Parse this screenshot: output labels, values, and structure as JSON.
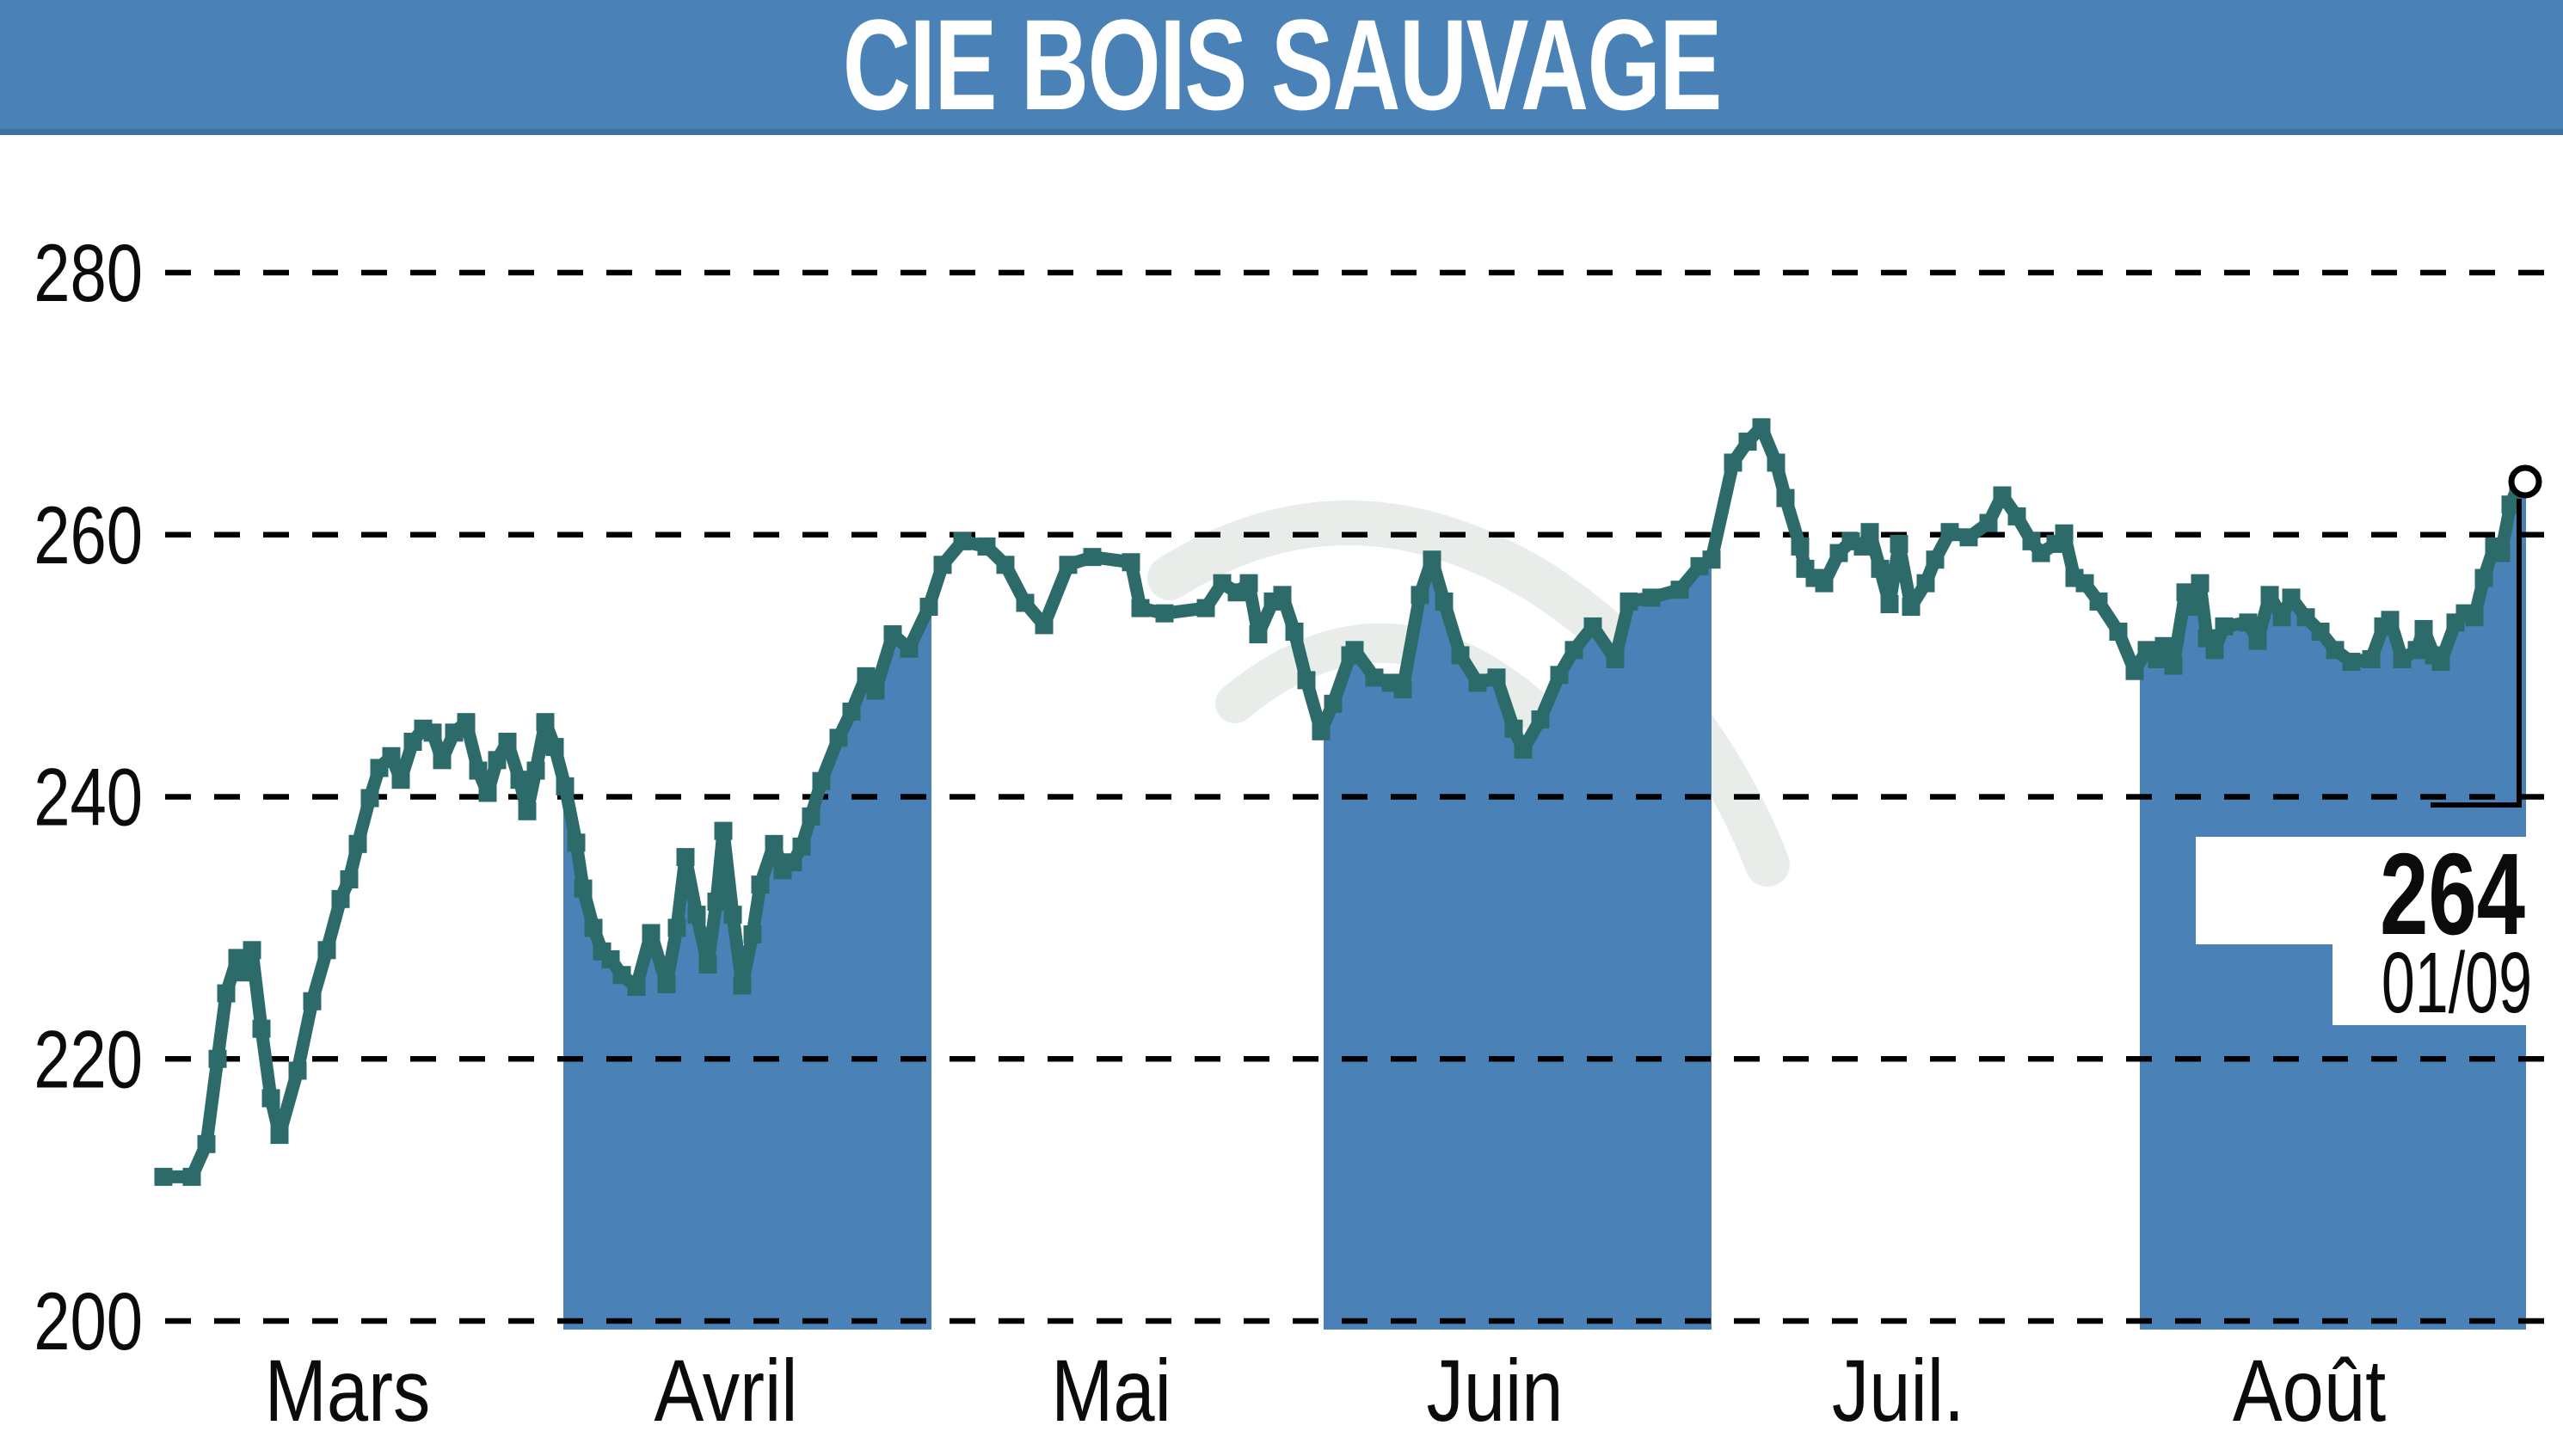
{
  "title_bar": {
    "label": "CIE BOIS SAUVAGE"
  },
  "price_callout": {
    "value": "264",
    "date": "01/09"
  },
  "colors": {
    "header_blue": "#4A82B8",
    "band_blue": "#4A82B8",
    "line_teal": "#2D6B6A",
    "grid_black": "#000000",
    "watermark_gray": "#E8EDEA",
    "text_black": "#0B0B0B",
    "title_text": "#FFFFFF",
    "marker_fill": "#FFFFFF"
  },
  "chart_data": {
    "type": "area",
    "title": "CIE BOIS SAUVAGE",
    "xlabel": "",
    "ylabel": "",
    "y_ticks": [
      280,
      260,
      240,
      220,
      200
    ],
    "ylim": [
      195,
      287
    ],
    "x_tick_labels": [
      "Mars",
      "Avril",
      "Mai",
      "Juin",
      "Juil.",
      "Août"
    ],
    "shaded_months": [
      "Avril",
      "Juin",
      "Août"
    ],
    "grid": "horizontal-dashed",
    "legend": "none",
    "last_point": {
      "value": 264,
      "date": "01/09"
    },
    "series": [
      {
        "name": "CIE BOIS SAUVAGE",
        "points": [
          [
            190,
            211
          ],
          [
            223,
            211
          ],
          [
            240,
            213.5
          ],
          [
            253,
            220
          ],
          [
            263,
            225
          ],
          [
            276,
            227.7
          ],
          [
            284,
            226.6
          ],
          [
            293,
            228.3
          ],
          [
            304,
            222.3
          ],
          [
            315,
            217
          ],
          [
            325,
            214.2
          ],
          [
            346,
            219.1
          ],
          [
            363,
            224.4
          ],
          [
            380,
            228.3
          ],
          [
            396,
            232.2
          ],
          [
            406,
            233.7
          ],
          [
            416,
            236.4
          ],
          [
            430,
            239.9
          ],
          [
            441,
            242.2
          ],
          [
            455,
            243.1
          ],
          [
            466,
            241.3
          ],
          [
            480,
            244.2
          ],
          [
            492,
            245.2
          ],
          [
            503,
            244.9
          ],
          [
            514,
            242.8
          ],
          [
            528,
            244.9
          ],
          [
            542,
            245.7
          ],
          [
            556,
            242
          ],
          [
            567,
            240.3
          ],
          [
            578,
            242.8
          ],
          [
            590,
            244.2
          ],
          [
            604,
            241.3
          ],
          [
            613,
            238.9
          ],
          [
            623,
            242
          ],
          [
            634,
            245.7
          ],
          [
            645,
            243.8
          ],
          [
            657,
            240.8
          ],
          [
            670,
            236.5
          ],
          [
            678,
            233
          ],
          [
            690,
            230
          ],
          [
            700,
            228.2
          ],
          [
            710,
            227.6
          ],
          [
            723,
            226.4
          ],
          [
            740,
            225.5
          ],
          [
            757,
            229.6
          ],
          [
            775,
            225.7
          ],
          [
            787,
            230
          ],
          [
            797,
            235.4
          ],
          [
            810,
            231
          ],
          [
            823,
            227.2
          ],
          [
            833,
            232
          ],
          [
            841,
            237.4
          ],
          [
            852,
            231
          ],
          [
            863,
            225.6
          ],
          [
            875,
            229.5
          ],
          [
            884,
            233.3
          ],
          [
            900,
            236.4
          ],
          [
            910,
            234.4
          ],
          [
            922,
            235
          ],
          [
            932,
            236.2
          ],
          [
            943,
            238.5
          ],
          [
            955,
            241.2
          ],
          [
            975,
            244.5
          ],
          [
            990,
            246.5
          ],
          [
            1007,
            249.2
          ],
          [
            1018,
            248.1
          ],
          [
            1038,
            252.4
          ],
          [
            1057,
            251.3
          ],
          [
            1080,
            254.5
          ],
          [
            1096,
            257.7
          ],
          [
            1119,
            259.5
          ],
          [
            1147,
            259.1
          ],
          [
            1169,
            257.7
          ],
          [
            1192,
            254.8
          ],
          [
            1214,
            253.1
          ],
          [
            1242,
            257.7
          ],
          [
            1270,
            258.3
          ],
          [
            1315,
            257.9
          ],
          [
            1326,
            254.4
          ],
          [
            1354,
            254
          ],
          [
            1402,
            254.4
          ],
          [
            1421,
            256.3
          ],
          [
            1438,
            255.6
          ],
          [
            1452,
            256.3
          ],
          [
            1463,
            252.4
          ],
          [
            1480,
            254.9
          ],
          [
            1491,
            255.4
          ],
          [
            1505,
            252.6
          ],
          [
            1519,
            248.9
          ],
          [
            1536,
            245
          ],
          [
            1550,
            247.1
          ],
          [
            1570,
            250.8
          ],
          [
            1575,
            251.2
          ],
          [
            1598,
            249.1
          ],
          [
            1617,
            248.7
          ],
          [
            1631,
            248.2
          ],
          [
            1651,
            255.4
          ],
          [
            1665,
            258.1
          ],
          [
            1679,
            254.9
          ],
          [
            1698,
            250.8
          ],
          [
            1718,
            248.7
          ],
          [
            1740,
            249.1
          ],
          [
            1760,
            245.2
          ],
          [
            1771,
            243.6
          ],
          [
            1791,
            245.9
          ],
          [
            1813,
            249.3
          ],
          [
            1830,
            251.2
          ],
          [
            1852,
            253
          ],
          [
            1878,
            250.5
          ],
          [
            1894,
            254.9
          ],
          [
            1920,
            255.2
          ],
          [
            1953,
            255.8
          ],
          [
            1976,
            257.6
          ],
          [
            1990,
            258.1
          ],
          [
            2015,
            265.5
          ],
          [
            2032,
            267.1
          ],
          [
            2048,
            268.2
          ],
          [
            2065,
            265.5
          ],
          [
            2076,
            262.8
          ],
          [
            2093,
            259.1
          ],
          [
            2099,
            257.4
          ],
          [
            2110,
            256.7
          ],
          [
            2121,
            256.3
          ],
          [
            2138,
            258.6
          ],
          [
            2152,
            259.5
          ],
          [
            2166,
            259.1
          ],
          [
            2174,
            260.2
          ],
          [
            2186,
            257.4
          ],
          [
            2197,
            254.7
          ],
          [
            2208,
            259.3
          ],
          [
            2222,
            254.5
          ],
          [
            2239,
            256.3
          ],
          [
            2250,
            258.1
          ],
          [
            2267,
            260.2
          ],
          [
            2289,
            259.8
          ],
          [
            2312,
            260.9
          ],
          [
            2328,
            263
          ],
          [
            2345,
            261.4
          ],
          [
            2362,
            259.5
          ],
          [
            2373,
            258.6
          ],
          [
            2390,
            259.3
          ],
          [
            2400,
            260.1
          ],
          [
            2412,
            256.7
          ],
          [
            2424,
            256.3
          ],
          [
            2440,
            254.9
          ],
          [
            2463,
            252.6
          ],
          [
            2482,
            249.6
          ],
          [
            2496,
            251.2
          ],
          [
            2508,
            250.5
          ],
          [
            2516,
            251.5
          ],
          [
            2527,
            250
          ],
          [
            2541,
            255.6
          ],
          [
            2552,
            254.5
          ],
          [
            2558,
            256.3
          ],
          [
            2566,
            252.1
          ],
          [
            2575,
            251.2
          ],
          [
            2586,
            253
          ],
          [
            2614,
            253.3
          ],
          [
            2625,
            251.9
          ],
          [
            2639,
            255.4
          ],
          [
            2653,
            253.7
          ],
          [
            2664,
            255.2
          ],
          [
            2681,
            253.7
          ],
          [
            2698,
            252.6
          ],
          [
            2715,
            251.2
          ],
          [
            2734,
            250.3
          ],
          [
            2757,
            250.5
          ],
          [
            2771,
            253
          ],
          [
            2779,
            253.5
          ],
          [
            2793,
            250.5
          ],
          [
            2810,
            251.2
          ],
          [
            2818,
            252.8
          ],
          [
            2830,
            250.8
          ],
          [
            2838,
            250.3
          ],
          [
            2855,
            253.3
          ],
          [
            2866,
            254
          ],
          [
            2877,
            253.7
          ],
          [
            2888,
            256.7
          ],
          [
            2900,
            259.1
          ],
          [
            2908,
            258.6
          ],
          [
            2919,
            262.3
          ],
          [
            2928,
            263.7
          ],
          [
            2936,
            264.1
          ]
        ]
      }
    ]
  }
}
